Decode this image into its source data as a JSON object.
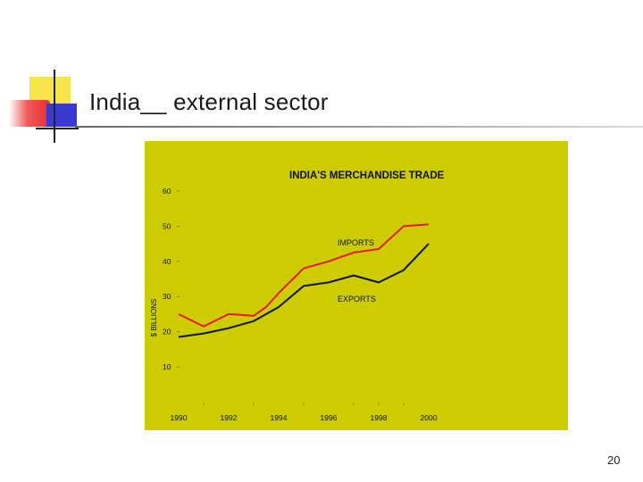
{
  "slide": {
    "title": "India__ external sector",
    "page_number": "20"
  },
  "colors": {
    "chart_bg": "#cccc00",
    "imports": "#e81818",
    "exports": "#111111",
    "text": "#111111"
  },
  "chart_data": {
    "type": "line",
    "title": "INDIA'S MERCHANDISE TRADE",
    "ylabel": "$ BILLIONS",
    "xlabel": "",
    "ylim": [
      5,
      65
    ],
    "xlim": [
      1990,
      2000
    ],
    "yticks": [
      10,
      20,
      30,
      40,
      50,
      60
    ],
    "xticks": [
      1990,
      1992,
      1994,
      1996,
      1998,
      2000
    ],
    "x": [
      1990,
      1991,
      1992,
      1992.5,
      1993,
      1993.5,
      1994,
      1995,
      1996,
      1997,
      1998,
      1999,
      2000
    ],
    "series": [
      {
        "name": "IMPORTS",
        "color": "#e81818",
        "values": [
          25,
          21.5,
          25,
          24.8,
          24.5,
          27,
          31,
          38,
          40,
          42.5,
          43.5,
          50,
          50.5
        ]
      },
      {
        "name": "EXPORTS",
        "color": "#111111",
        "values": [
          18.5,
          19.5,
          21,
          22,
          23,
          25,
          27,
          33,
          34,
          36,
          34,
          37.5,
          45
        ]
      }
    ]
  }
}
